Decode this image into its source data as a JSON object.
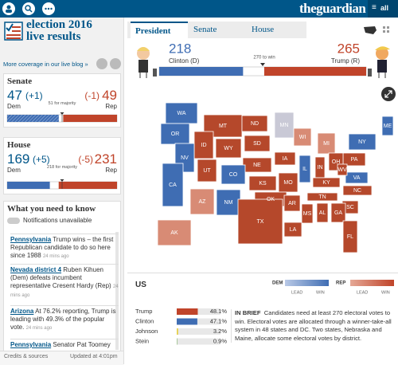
{
  "header": {
    "logo": "theguardian",
    "menu": "all"
  },
  "sidebar": {
    "title_line1": "election 2016",
    "title_line2": "live results",
    "blog_link": "More coverage in our live blog »",
    "senate": {
      "title": "Senate",
      "dem": 47,
      "dem_change": "(+1)",
      "rep": 49,
      "rep_change": "(-1)",
      "dem_label": "Dem",
      "rep_label": "Rep",
      "majority": "51 for majority",
      "xlim": [
        0,
        100
      ]
    },
    "house": {
      "title": "House",
      "dem": 169,
      "dem_change": "(+5)",
      "rep": 231,
      "rep_change": "(-5)",
      "dem_label": "Dem",
      "rep_label": "Rep",
      "majority": "218 for majority",
      "xlim": [
        0,
        435
      ]
    },
    "news": {
      "title": "What you need to know",
      "notifications": "Notifications unavailable",
      "items": [
        {
          "place": "Pennsylvania",
          "text": "Trump wins – the first Republican candidate to do so here since 1988",
          "time": "24 mins ago"
        },
        {
          "place": "Nevada district 4",
          "text": "Ruben Kihuen (Dem) defeats incumbent representative Cresent Hardy (Rep)",
          "time": "24 mins ago"
        },
        {
          "place": "Arizona",
          "text": "At 76.2% reporting, Trump is leading with 49.3% of the popular vote.",
          "time": "24 mins ago"
        },
        {
          "place": "Pennsylvania",
          "text": "Senator Pat Toomey"
        }
      ]
    },
    "footer": {
      "credits": "Credits & sources",
      "updated": "Updated at 4:01pm"
    }
  },
  "main": {
    "tabs": [
      "President",
      "Senate",
      "House"
    ],
    "president": {
      "clinton": 218,
      "clinton_label": "Clinton (D)",
      "trump": 265,
      "trump_label": "Trump (R)",
      "to_win": "270 to win",
      "xlim": [
        0,
        538
      ]
    },
    "map": {
      "states": [
        {
          "label": "WA",
          "status": "dem"
        },
        {
          "label": "MT",
          "status": "rep"
        },
        {
          "label": "MN",
          "status": "uncalled"
        },
        {
          "label": "ME",
          "status": "dem"
        },
        {
          "label": "OR",
          "status": "dem"
        },
        {
          "label": "ID",
          "status": "rep"
        },
        {
          "label": "WY",
          "status": "rep"
        },
        {
          "label": "SD",
          "status": "rep"
        },
        {
          "label": "WI",
          "status": "lean-rep"
        },
        {
          "label": "MI",
          "status": "lean-rep"
        },
        {
          "label": "NY",
          "status": "dem"
        },
        {
          "label": "NV",
          "status": "dem"
        },
        {
          "label": "NE",
          "status": "rep"
        },
        {
          "label": "IA",
          "status": "rep"
        },
        {
          "label": "PA",
          "status": "rep"
        },
        {
          "label": "UT",
          "status": "rep"
        },
        {
          "label": "CO",
          "status": "dem"
        },
        {
          "label": "KS",
          "status": "rep"
        },
        {
          "label": "MO",
          "status": "rep"
        },
        {
          "label": "IL",
          "status": "dem"
        },
        {
          "label": "IN",
          "status": "rep"
        },
        {
          "label": "OH",
          "status": "rep"
        },
        {
          "label": "VA",
          "status": "dem"
        },
        {
          "label": "CA",
          "status": "dem"
        },
        {
          "label": "KY",
          "status": "rep"
        },
        {
          "label": "NC",
          "status": "rep"
        },
        {
          "label": "OK",
          "status": "rep"
        },
        {
          "label": "AR",
          "status": "rep"
        },
        {
          "label": "TN",
          "status": "rep"
        },
        {
          "label": "AZ",
          "status": "lean-rep"
        },
        {
          "label": "NM",
          "status": "dem"
        },
        {
          "label": "SC",
          "status": "rep"
        },
        {
          "label": "MS",
          "status": "rep"
        },
        {
          "label": "AL",
          "status": "rep"
        },
        {
          "label": "GA",
          "status": "rep"
        },
        {
          "label": "TX",
          "status": "rep"
        },
        {
          "label": "LA",
          "status": "rep"
        },
        {
          "label": "AK",
          "status": "lean-rep"
        },
        {
          "label": "FL",
          "status": "rep"
        },
        {
          "label": "ND",
          "status": "rep"
        },
        {
          "label": "WV",
          "status": "rep"
        }
      ]
    },
    "us": {
      "title": "US",
      "dem": "DEM",
      "rep": "REP",
      "lead": "LEAD",
      "win": "WIN"
    },
    "popular_vote": {
      "candidates": [
        "Trump",
        "Clinton",
        "Johnson",
        "Stein"
      ],
      "values": [
        48.1,
        47.1,
        3.2,
        0.9
      ],
      "value_labels": [
        "48.1%",
        "47.1%",
        "3.2%",
        "0.9%"
      ],
      "colors": [
        "#c0442a",
        "#3f6db3",
        "#e6cf48",
        "#6aa84f"
      ],
      "xlim": [
        0,
        100
      ]
    },
    "in_brief": {
      "label": "IN BRIEF",
      "text": "Candidates need at least 270 electoral votes to win. Electoral votes are allocated through a winner-take-all system in 48 states and DC. Two states, Nebraska and Maine, allocate some electoral votes by district."
    }
  }
}
